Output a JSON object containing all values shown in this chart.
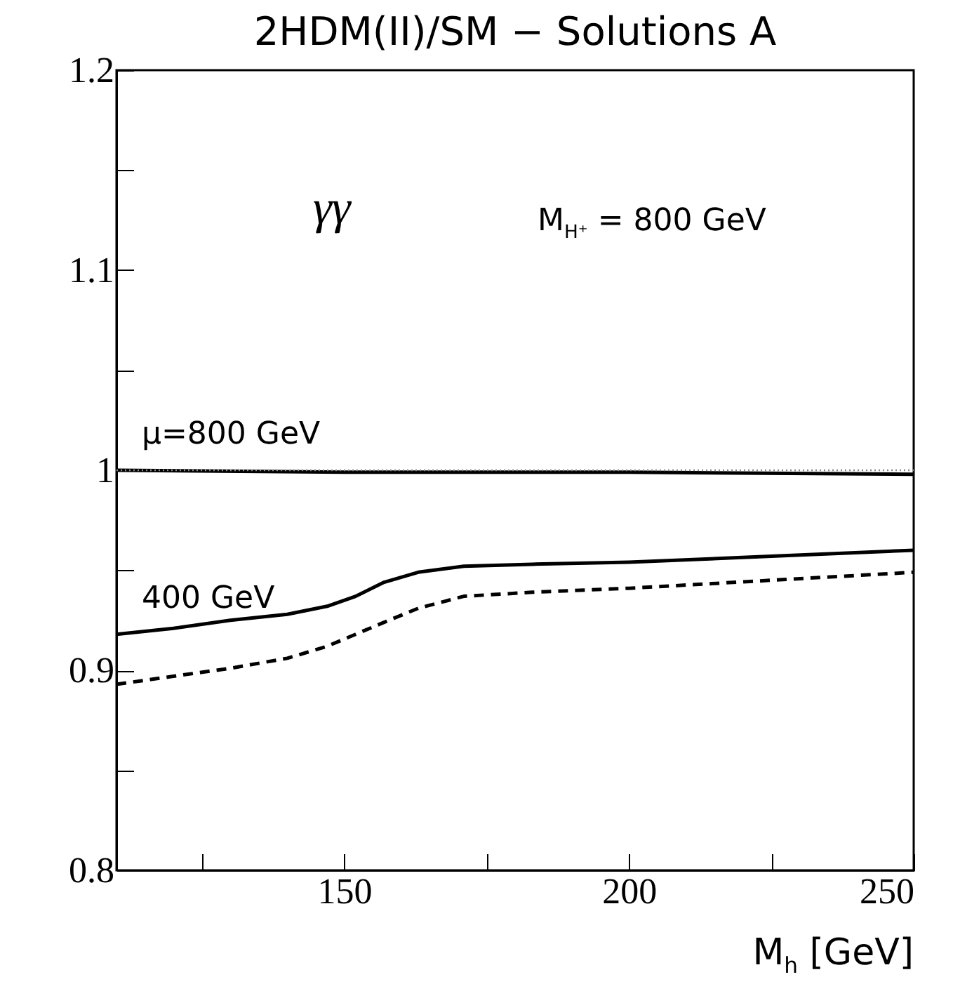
{
  "chart_data": {
    "type": "line",
    "title": "2HDM(II)/SM − Solutions A",
    "xlabel": "M$_{h}$ [GeV]",
    "annotations": [
      "γγ",
      "M$_{H⁺}$ = 800 GeV"
    ],
    "xlim": [
      110,
      250
    ],
    "xticks": [
      {
        "value": 125,
        "label": null
      },
      150,
      {
        "value": 175,
        "label": null
      },
      200,
      {
        "value": 225,
        "label": null
      },
      250
    ],
    "ylim": [
      0.8,
      1.2
    ],
    "yticks": [
      0.8,
      {
        "value": 0.85,
        "label": null
      },
      0.9,
      {
        "value": 0.95,
        "label": null
      },
      1,
      {
        "value": 1.05,
        "label": null
      },
      1.1,
      {
        "value": 1.15,
        "label": null
      },
      1.2
    ],
    "grid": false,
    "ref_lines": [
      {
        "axis": "y",
        "value": 1,
        "line_style": "dotted",
        "color": "#888888"
      }
    ],
    "series": [
      {
        "name": "μ=800 GeV",
        "color": "#000000",
        "line_style": "solid",
        "x": [
          110,
          150,
          200,
          250
        ],
        "values": [
          1.0,
          0.999,
          0.999,
          0.998
        ]
      },
      {
        "name": "400 GeV",
        "color": "#000000",
        "line_style": "solid",
        "x": [
          110,
          120,
          130,
          140,
          147,
          152,
          157,
          163,
          171,
          183,
          200,
          225,
          250
        ],
        "values": [
          0.918,
          0.921,
          0.925,
          0.928,
          0.932,
          0.937,
          0.944,
          0.949,
          0.952,
          0.953,
          0.954,
          0.957,
          0.96
        ]
      },
      {
        "color": "#000000",
        "line_style": "dashed",
        "x": [
          110,
          120,
          130,
          140,
          147,
          152,
          157,
          163,
          171,
          183,
          200,
          225,
          250
        ],
        "values": [
          0.893,
          0.897,
          0.901,
          0.906,
          0.912,
          0.918,
          0.924,
          0.931,
          0.937,
          0.939,
          0.941,
          0.945,
          0.949
        ]
      }
    ]
  }
}
